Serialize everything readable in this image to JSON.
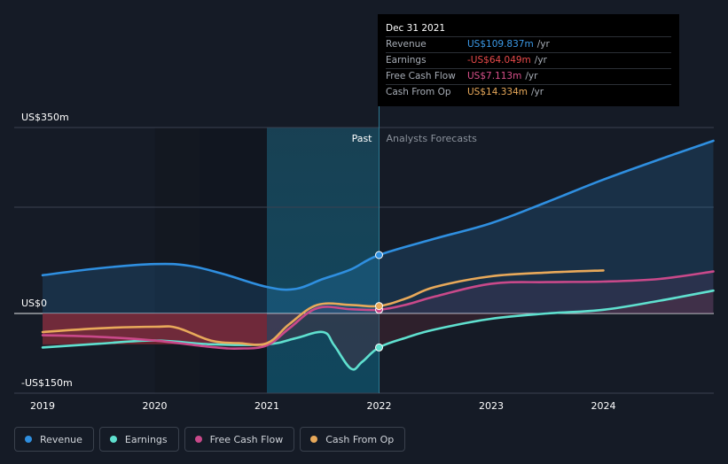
{
  "tooltip": {
    "date": "Dec 31 2021",
    "rows": [
      {
        "label": "Revenue",
        "value": "US$109.837m",
        "unit": "/yr",
        "color": "#3b9ae8"
      },
      {
        "label": "Earnings",
        "value": "-US$64.049m",
        "unit": "/yr",
        "color": "#e84a4a"
      },
      {
        "label": "Free Cash Flow",
        "value": "US$7.113m",
        "unit": "/yr",
        "color": "#d8508a"
      },
      {
        "label": "Cash From Op",
        "value": "US$14.334m",
        "unit": "/yr",
        "color": "#e8a95a"
      }
    ]
  },
  "legend": [
    {
      "label": "Revenue",
      "color": "#2f8fe0"
    },
    {
      "label": "Earnings",
      "color": "#5fe0cf"
    },
    {
      "label": "Free Cash Flow",
      "color": "#c9498a"
    },
    {
      "label": "Cash From Op",
      "color": "#e8a95a"
    }
  ],
  "chart_data": {
    "type": "line",
    "y_tick_labels": [
      "US$350m",
      "US$0",
      "-US$150m"
    ],
    "ylim": [
      -150,
      350
    ],
    "x_ticks": [
      2019,
      2020,
      2021,
      2022,
      2023,
      2024
    ],
    "xlim": [
      2018.75,
      2024.98
    ],
    "region_labels": {
      "past": "Past",
      "forecast": "Analysts Forecasts"
    },
    "past_end": 2022.0,
    "highlight_range": [
      2021.0,
      2022.0
    ],
    "series": [
      {
        "name": "Revenue",
        "color": "#2f8fe0",
        "points": [
          [
            2019.0,
            72
          ],
          [
            2019.5,
            85
          ],
          [
            2020.0,
            93
          ],
          [
            2020.3,
            90
          ],
          [
            2020.6,
            75
          ],
          [
            2021.0,
            50
          ],
          [
            2021.25,
            46
          ],
          [
            2021.5,
            65
          ],
          [
            2021.75,
            83
          ],
          [
            2022.0,
            110
          ],
          [
            2022.5,
            141
          ],
          [
            2023.0,
            170
          ],
          [
            2023.5,
            210
          ],
          [
            2024.0,
            252
          ],
          [
            2024.5,
            290
          ],
          [
            2024.98,
            325
          ]
        ]
      },
      {
        "name": "Earnings",
        "color": "#5fe0cf",
        "points": [
          [
            2019.0,
            -64
          ],
          [
            2019.5,
            -57
          ],
          [
            2020.0,
            -51
          ],
          [
            2020.5,
            -58
          ],
          [
            2021.0,
            -58
          ],
          [
            2021.25,
            -47
          ],
          [
            2021.5,
            -35
          ],
          [
            2021.6,
            -60
          ],
          [
            2021.75,
            -104
          ],
          [
            2021.85,
            -91
          ],
          [
            2022.0,
            -64
          ],
          [
            2022.25,
            -45
          ],
          [
            2022.5,
            -30
          ],
          [
            2023.0,
            -10
          ],
          [
            2023.5,
            0
          ],
          [
            2024.0,
            7
          ],
          [
            2024.5,
            24
          ],
          [
            2024.98,
            43
          ]
        ]
      },
      {
        "name": "Free Cash Flow",
        "color": "#c9498a",
        "points": [
          [
            2019.0,
            -41
          ],
          [
            2019.5,
            -44
          ],
          [
            2020.0,
            -51
          ],
          [
            2020.5,
            -63
          ],
          [
            2020.75,
            -66
          ],
          [
            2021.0,
            -60
          ],
          [
            2021.2,
            -28
          ],
          [
            2021.45,
            10
          ],
          [
            2021.75,
            8
          ],
          [
            2022.0,
            7
          ],
          [
            2022.25,
            17
          ],
          [
            2022.5,
            32
          ],
          [
            2023.0,
            56
          ],
          [
            2023.5,
            59
          ],
          [
            2024.0,
            60
          ],
          [
            2024.5,
            65
          ],
          [
            2024.98,
            79
          ]
        ]
      },
      {
        "name": "Cash From Op",
        "color": "#e8a95a",
        "points": [
          [
            2019.0,
            -35
          ],
          [
            2019.5,
            -28
          ],
          [
            2020.0,
            -25
          ],
          [
            2020.2,
            -27
          ],
          [
            2020.5,
            -51
          ],
          [
            2020.75,
            -56
          ],
          [
            2021.0,
            -56
          ],
          [
            2021.2,
            -20
          ],
          [
            2021.45,
            16
          ],
          [
            2021.75,
            16
          ],
          [
            2022.0,
            14
          ],
          [
            2022.25,
            29
          ],
          [
            2022.5,
            50
          ],
          [
            2023.0,
            70
          ],
          [
            2023.5,
            77
          ],
          [
            2024.0,
            81
          ]
        ]
      }
    ],
    "tooltip_markers": [
      {
        "series": "Revenue",
        "x": 2022.0,
        "y": 110
      },
      {
        "series": "Earnings",
        "x": 2022.0,
        "y": -64
      },
      {
        "series": "Free Cash Flow",
        "x": 2022.0,
        "y": 7
      },
      {
        "series": "Cash From Op",
        "x": 2022.0,
        "y": 14
      }
    ]
  }
}
